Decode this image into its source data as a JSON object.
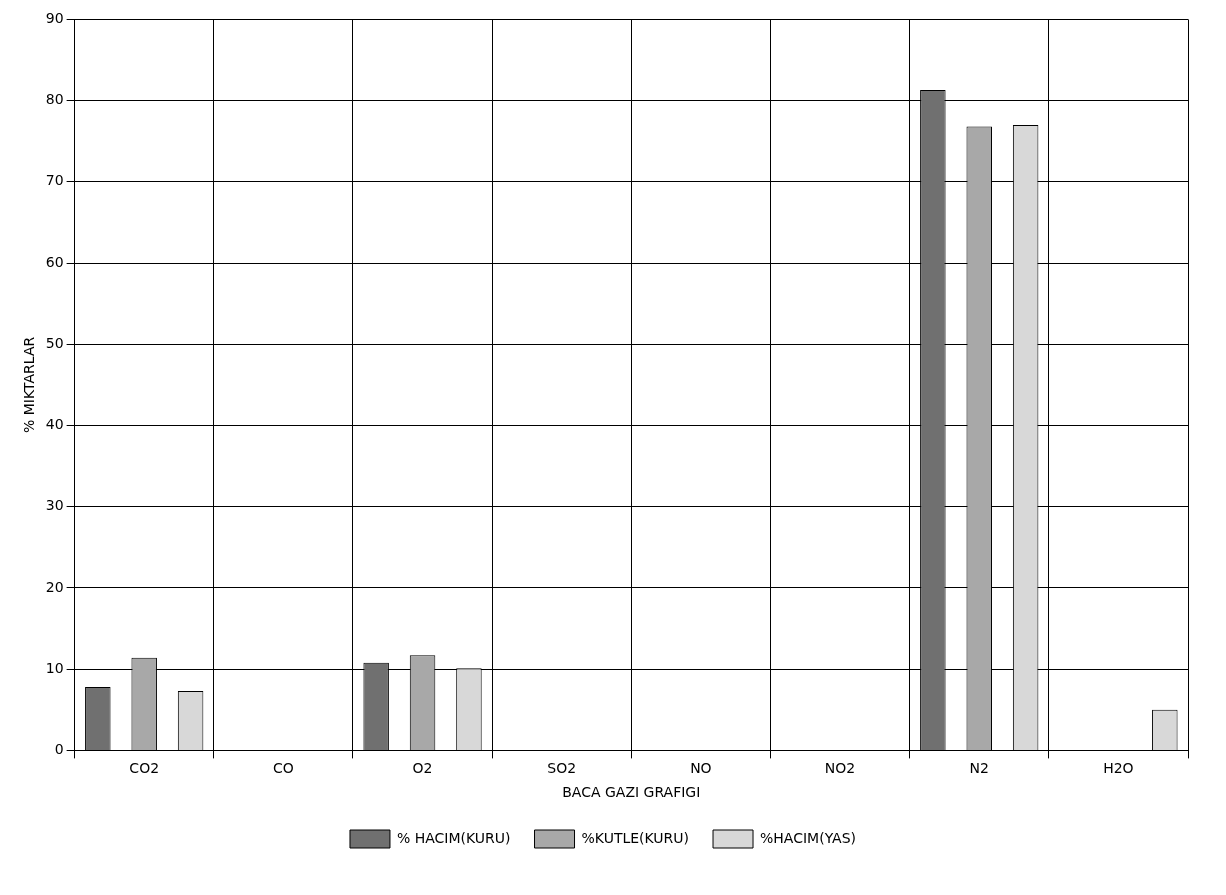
{
  "chart_data": {
    "type": "bar",
    "xlabel": "BACA GAZI GRAFIGI",
    "ylabel": "% MIKTARLAR",
    "categories": [
      "CO2",
      "CO",
      "O2",
      "SO2",
      "NO",
      "NO2",
      "N2",
      "H2O"
    ],
    "series": [
      {
        "name": "% HACIM(KURU)",
        "color": "#707070",
        "values": [
          7.8,
          0,
          10.8,
          0,
          0,
          0,
          81.3,
          0
        ]
      },
      {
        "name": "%KUTLE(KURU)",
        "color": "#a8a8a8",
        "values": [
          11.4,
          0,
          11.7,
          0,
          0,
          0,
          76.8,
          0
        ]
      },
      {
        "name": "%HACIM(YAS)",
        "color": "#d8d8d8",
        "values": [
          7.3,
          0,
          10.1,
          0,
          0,
          0,
          77,
          5
        ]
      }
    ],
    "ylim": [
      0,
      90
    ],
    "yticks": [
      0,
      10,
      20,
      30,
      40,
      50,
      60,
      70,
      80,
      90
    ],
    "grid": true,
    "legend": "bottom"
  }
}
